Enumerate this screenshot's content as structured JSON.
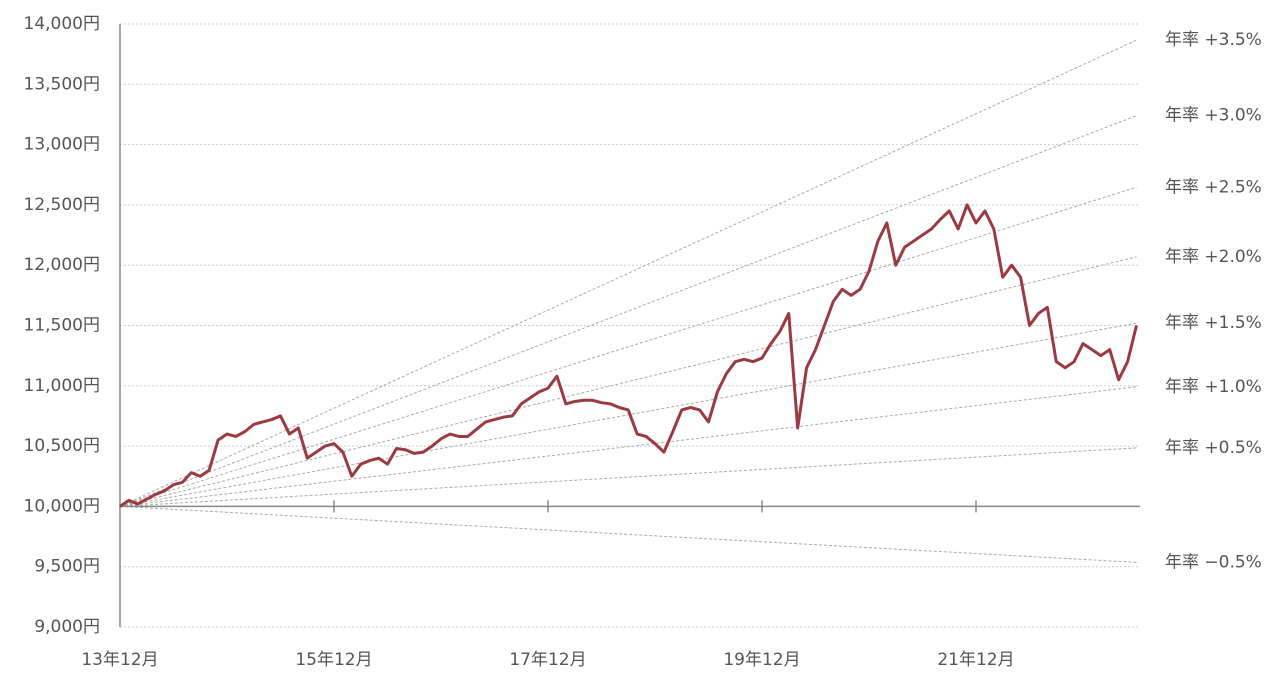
{
  "chart_data": {
    "type": "line",
    "categories": [
      "13年12月",
      null,
      null,
      null,
      null,
      null,
      null,
      null,
      null,
      null,
      null,
      null,
      null,
      null,
      null,
      null,
      null,
      null,
      null,
      null,
      null,
      null,
      null,
      null,
      "15年12月",
      null,
      null,
      null,
      null,
      null,
      null,
      null,
      null,
      null,
      null,
      null,
      null,
      null,
      null,
      null,
      null,
      null,
      null,
      null,
      null,
      null,
      null,
      null,
      "17年12月",
      null,
      null,
      null,
      null,
      null,
      null,
      null,
      null,
      null,
      null,
      null,
      null,
      null,
      null,
      null,
      null,
      null,
      null,
      null,
      null,
      null,
      null,
      null,
      "19年12月",
      null,
      null,
      null,
      null,
      null,
      null,
      null,
      null,
      null,
      null,
      null,
      null,
      null,
      null,
      null,
      null,
      null,
      null,
      null,
      null,
      null,
      null,
      null,
      "21年12月",
      null,
      null,
      null,
      null,
      null,
      null,
      null,
      null,
      null,
      null,
      null,
      null,
      null,
      null,
      null,
      null,
      null,
      null
    ],
    "series": [
      {
        "color": "#9b3a40",
        "values": [
          10000,
          10050,
          10020,
          10060,
          10100,
          10130,
          10180,
          10200,
          10280,
          10250,
          10300,
          10550,
          10600,
          10580,
          10620,
          10680,
          10700,
          10720,
          10750,
          10600,
          10650,
          10400,
          10450,
          10500,
          10520,
          10450,
          10250,
          10350,
          10380,
          10400,
          10350,
          10480,
          10470,
          10440,
          10450,
          10500,
          10560,
          10600,
          10580,
          10580,
          10640,
          10700,
          10720,
          10740,
          10750,
          10850,
          10900,
          10950,
          10980,
          11080,
          10850,
          10870,
          10880,
          10880,
          10860,
          10850,
          10820,
          10800,
          10600,
          10580,
          10520,
          10450,
          10620,
          10800,
          10820,
          10800,
          10700,
          10950,
          11100,
          11200,
          11220,
          11200,
          11230,
          11350,
          11450,
          11600,
          10650,
          11150,
          11300,
          11500,
          11700,
          11800,
          11750,
          11800,
          11950,
          12200,
          12350,
          12000,
          12150,
          12200,
          12250,
          12300,
          12380,
          12450,
          12300,
          12500,
          12350,
          12450,
          12300,
          11900,
          12000,
          11900,
          11500,
          11600,
          11650,
          11200,
          11150,
          11200,
          11350,
          11300,
          11250,
          11300,
          11050,
          11200,
          11500
        ]
      }
    ],
    "reference_lines": [
      {
        "label": "年率 +3.5%",
        "start": 10000,
        "end": 13866,
        "color": "#aaaaaa"
      },
      {
        "label": "年率 +3.0%",
        "start": 10000,
        "end": 13240,
        "color": "#aaaaaa"
      },
      {
        "label": "年率 +2.5%",
        "start": 10000,
        "end": 12646,
        "color": "#aaaaaa"
      },
      {
        "label": "年率 +2.0%",
        "start": 10000,
        "end": 12070,
        "color": "#aaaaaa"
      },
      {
        "label": "年率 +1.5%",
        "start": 10000,
        "end": 11519,
        "color": "#aaaaaa"
      },
      {
        "label": "年率 +1.0%",
        "start": 10000,
        "end": 10992,
        "color": "#aaaaaa"
      },
      {
        "label": "年率 +0.5%",
        "start": 10000,
        "end": 10485,
        "color": "#aaaaaa"
      },
      {
        "label": "年率 −0.5%",
        "start": 10000,
        "end": 9536,
        "color": "#aaaaaa"
      }
    ],
    "ylim": [
      9000,
      14000
    ],
    "yticks": [
      {
        "value": 9000,
        "label": "9,000円"
      },
      {
        "value": 9500,
        "label": "9,500円"
      },
      {
        "value": 10000,
        "label": "10,000円"
      },
      {
        "value": 10500,
        "label": "10,500円"
      },
      {
        "value": 11000,
        "label": "11,000円"
      },
      {
        "value": 11500,
        "label": "11,500円"
      },
      {
        "value": 12000,
        "label": "12,000円"
      },
      {
        "value": 12500,
        "label": "12,500円"
      },
      {
        "value": 13000,
        "label": "13,000円"
      },
      {
        "value": 13500,
        "label": "13,500円"
      },
      {
        "value": 14000,
        "label": "14,000円"
      }
    ],
    "grid": true
  }
}
